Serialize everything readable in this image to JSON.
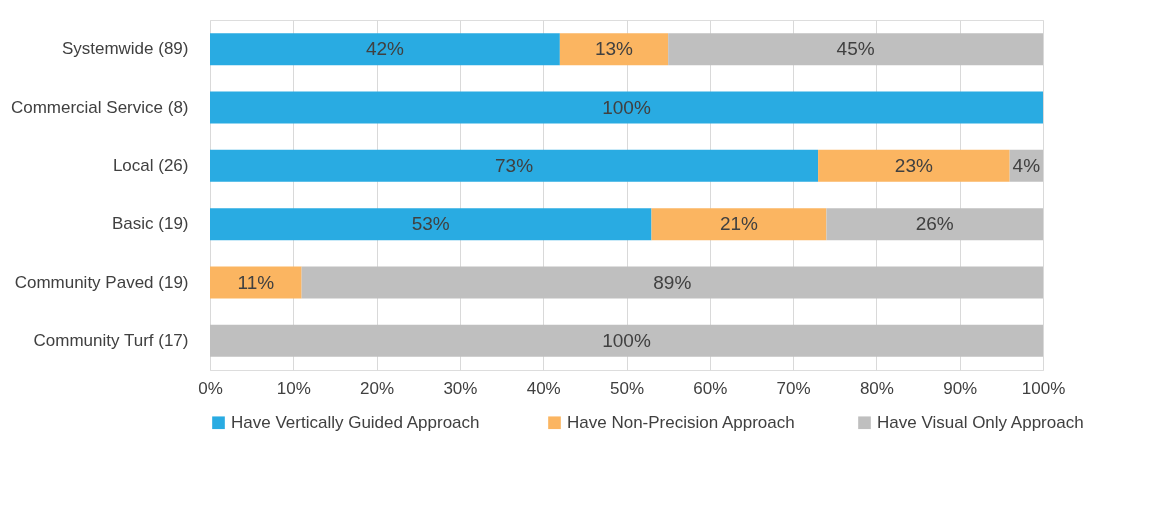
{
  "chart_data": {
    "type": "bar",
    "orientation": "horizontal",
    "stacked": true,
    "categories": [
      "Systemwide (89)",
      "Commercial Service (8)",
      "Local (26)",
      "Basic (19)",
      "Community Paved (19)",
      "Community Turf (17)"
    ],
    "series": [
      {
        "name": "Have Vertically  Guided Approach",
        "color": "#29abe2",
        "values": [
          42,
          100,
          73,
          53,
          null,
          null
        ],
        "value_labels": [
          "42%",
          "100%",
          "73%",
          "53%",
          null,
          null
        ]
      },
      {
        "name": "Have Non-Precision Approach",
        "color": "#fbb561",
        "values": [
          13,
          null,
          23,
          21,
          11,
          null
        ],
        "value_labels": [
          "13%",
          null,
          "23%",
          "21%",
          "11%",
          null
        ]
      },
      {
        "name": "Have Visual Only Approach",
        "color": "#bfbfbf",
        "values": [
          45,
          null,
          4,
          26,
          89,
          100
        ],
        "value_labels": [
          "45%",
          null,
          "4%",
          "26%",
          "89%",
          "100%"
        ]
      }
    ],
    "xlim": [
      0,
      100
    ],
    "xticks": [
      {
        "value": 0,
        "label": "0%"
      },
      {
        "value": 10,
        "label": "10%"
      },
      {
        "value": 20,
        "label": "20%"
      },
      {
        "value": 30,
        "label": "30%"
      },
      {
        "value": 40,
        "label": "40%"
      },
      {
        "value": 50,
        "label": "50%"
      },
      {
        "value": 60,
        "label": "60%"
      },
      {
        "value": 70,
        "label": "70%"
      },
      {
        "value": 80,
        "label": "80%"
      },
      {
        "value": 90,
        "label": "90%"
      },
      {
        "value": 100,
        "label": "100%"
      }
    ],
    "grid": "x",
    "legend": "bottom"
  }
}
